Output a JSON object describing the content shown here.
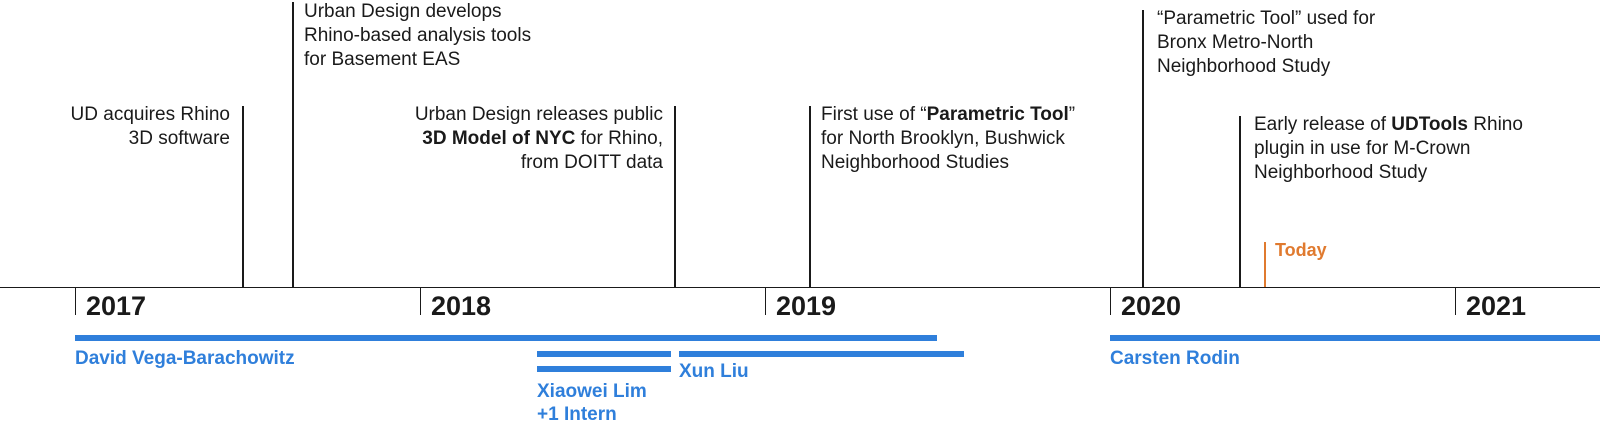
{
  "colors": {
    "text": "#1a1a1a",
    "accent_blue": "#2f7fdb",
    "today_orange": "#e07a2f"
  },
  "years": [
    "2017",
    "2018",
    "2019",
    "2020",
    "2021"
  ],
  "events": [
    {
      "id": "rhino-acquired",
      "lines": [
        [
          {
            "t": "UD acquires Rhino"
          }
        ],
        [
          {
            "t": "3D software"
          }
        ]
      ]
    },
    {
      "id": "analysis-tools",
      "lines": [
        [
          {
            "t": "Urban Design develops"
          }
        ],
        [
          {
            "t": "Rhino-based analysis tools"
          }
        ],
        [
          {
            "t": "for Basement EAS"
          }
        ]
      ]
    },
    {
      "id": "3d-model-nyc",
      "lines": [
        [
          {
            "t": "Urban Design releases public"
          }
        ],
        [
          {
            "t": "3D Model of NYC",
            "b": true
          },
          {
            "t": " for Rhino,"
          }
        ],
        [
          {
            "t": "from DOITT data"
          }
        ]
      ]
    },
    {
      "id": "parametric-first-use",
      "lines": [
        [
          {
            "t": "First use of “"
          },
          {
            "t": "Parametric Tool",
            "b": true
          },
          {
            "t": "”"
          }
        ],
        [
          {
            "t": "for North Brooklyn, Bushwick"
          }
        ],
        [
          {
            "t": "Neighborhood Studies"
          }
        ]
      ]
    },
    {
      "id": "parametric-bronx",
      "lines": [
        [
          {
            "t": "“Parametric Tool” used for"
          }
        ],
        [
          {
            "t": "Bronx Metro-North"
          }
        ],
        [
          {
            "t": "Neighborhood Study"
          }
        ]
      ]
    },
    {
      "id": "udtools-early-release",
      "lines": [
        [
          {
            "t": "Early release of "
          },
          {
            "t": "UDTools",
            "b": true
          },
          {
            "t": " Rhino"
          }
        ],
        [
          {
            "t": "plugin in use for M-Crown"
          }
        ],
        [
          {
            "t": "Neighborhood Study"
          }
        ]
      ]
    }
  ],
  "today_label": "Today",
  "people": [
    {
      "id": "david",
      "lines": [
        "David Vega-Barachowitz"
      ]
    },
    {
      "id": "xiaowei",
      "lines": [
        "Xiaowei Lim",
        "+1 Intern"
      ]
    },
    {
      "id": "xun",
      "lines": [
        "Xun Liu"
      ]
    },
    {
      "id": "carsten",
      "lines": [
        "Carsten Rodin"
      ]
    }
  ]
}
